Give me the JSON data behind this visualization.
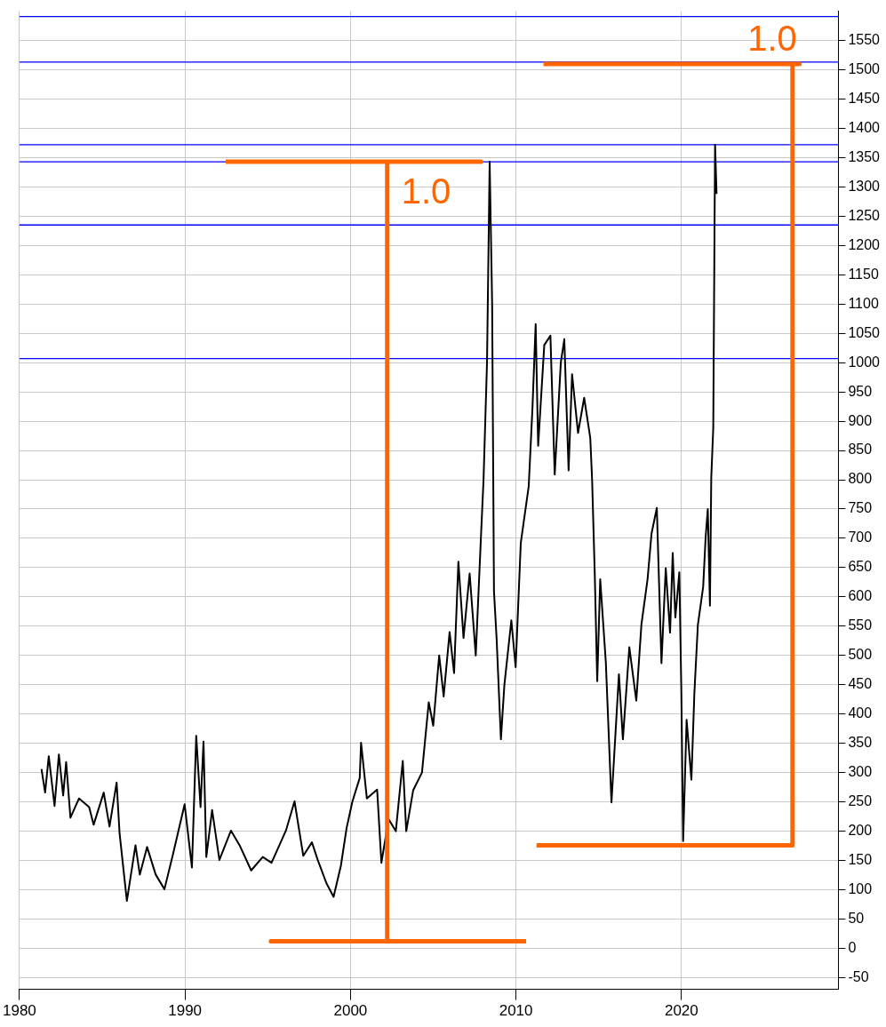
{
  "chart_data": {
    "type": "line",
    "xlim": [
      1980,
      2029.48
    ],
    "xticks": [
      1980,
      1990,
      2000,
      2010,
      2020
    ],
    "ylim": [
      -70,
      1600
    ],
    "yticks": [
      -50,
      0,
      50,
      100,
      150,
      200,
      250,
      300,
      350,
      400,
      450,
      500,
      550,
      600,
      650,
      700,
      750,
      800,
      850,
      900,
      950,
      1000,
      1050,
      1100,
      1150,
      1200,
      1250,
      1300,
      1350,
      1400,
      1450,
      1500,
      1550
    ],
    "grid": true,
    "legend": false,
    "series": [
      {
        "color": "#000000",
        "x": [
          1981.33,
          1981.55,
          1981.77,
          1982.12,
          1982.38,
          1982.64,
          1982.82,
          1983.08,
          1983.6,
          1984.21,
          1984.48,
          1985.09,
          1985.44,
          1985.87,
          1986.05,
          1986.49,
          1987.01,
          1987.27,
          1987.71,
          1988.23,
          1988.76,
          1989.28,
          1989.98,
          1990.42,
          1990.68,
          1990.94,
          1991.12,
          1991.29,
          1991.64,
          1992.08,
          1992.78,
          1993.3,
          1994.0,
          1994.7,
          1995.23,
          1996.1,
          1996.62,
          1997.15,
          1997.67,
          1998.02,
          1998.55,
          1998.98,
          1999.42,
          1999.77,
          2000.12,
          2000.56,
          2000.64,
          2000.99,
          2001.61,
          2001.87,
          2002.22,
          2002.32,
          2002.74,
          2003.16,
          2003.37,
          2003.79,
          2004.32,
          2004.73,
          2005.0,
          2005.36,
          2005.63,
          2005.99,
          2006.26,
          2006.52,
          2006.83,
          2007.2,
          2007.57,
          2007.88,
          2008.04,
          2008.25,
          2008.41,
          2008.56,
          2008.67,
          2008.83,
          2009.09,
          2009.3,
          2009.72,
          2009.98,
          2010.29,
          2010.77,
          2011.0,
          2011.19,
          2011.34,
          2011.71,
          2012.08,
          2012.34,
          2012.71,
          2012.92,
          2013.18,
          2013.39,
          2013.75,
          2014.12,
          2014.49,
          2014.6,
          2014.76,
          2014.91,
          2015.09,
          2015.43,
          2015.77,
          2016.22,
          2016.46,
          2016.85,
          2017.27,
          2017.58,
          2017.95,
          2018.19,
          2018.51,
          2018.79,
          2019.05,
          2019.31,
          2019.47,
          2019.63,
          2019.87,
          2019.99,
          2020.1,
          2020.31,
          2020.6,
          2020.78,
          2020.99,
          2021.31,
          2021.46,
          2021.59,
          2021.72,
          2021.8,
          2021.92,
          2022.03,
          2022.12
        ],
        "values": [
          306,
          266,
          328,
          243,
          331,
          261,
          318,
          223,
          256,
          241,
          211,
          266,
          208,
          283,
          196,
          81,
          176,
          126,
          173,
          126,
          101,
          161,
          246,
          138,
          363,
          241,
          353,
          156,
          236,
          151,
          201,
          176,
          133,
          156,
          146,
          201,
          251,
          158,
          181,
          151,
          111,
          88,
          141,
          206,
          251,
          291,
          351,
          256,
          271,
          146,
          206,
          220,
          200,
          320,
          200,
          270,
          300,
          420,
          380,
          500,
          430,
          540,
          470,
          660,
          530,
          640,
          500,
          700,
          800,
          1000,
          1343,
          1100,
          610,
          529,
          357,
          450,
          560,
          480,
          692,
          789,
          925,
          1066,
          858,
          1030,
          1046,
          809,
          1000,
          1040,
          816,
          980,
          880,
          940,
          871,
          800,
          640,
          456,
          630,
          488,
          249,
          468,
          357,
          514,
          423,
          553,
          630,
          708,
          752,
          487,
          649,
          539,
          675,
          565,
          642,
          442,
          183,
          390,
          288,
          436,
          552,
          617,
          702,
          750,
          585,
          804,
          888,
          1372,
          1288
        ]
      },
      {
        "color": "#ff6600",
        "x": [
          1992.46,
          2007.88,
          2002.22,
          2002.22,
          1995.19,
          2010.61
        ],
        "values": [
          1343,
          1343,
          1343,
          12,
          12,
          12
        ]
      },
      {
        "color": "#ff6600",
        "x": [
          2011.66,
          2027.13,
          2026.71,
          2026.71,
          2011.24
        ],
        "values": [
          1510,
          1510,
          1510,
          176,
          176
        ]
      }
    ],
    "ref_lines": [
      {
        "axis": "y",
        "value": 1591,
        "color": "#0000ff"
      },
      {
        "axis": "y",
        "value": 1513,
        "color": "#0000ff"
      },
      {
        "axis": "y",
        "value": 1372,
        "color": "#0000ff"
      },
      {
        "axis": "y",
        "value": 1343,
        "color": "#0000ff"
      },
      {
        "axis": "y",
        "value": 1235,
        "color": "#0000ff"
      },
      {
        "axis": "y",
        "value": 1007,
        "color": "#0000ff"
      }
    ],
    "annotations": [
      "1.0",
      "1.0"
    ]
  }
}
